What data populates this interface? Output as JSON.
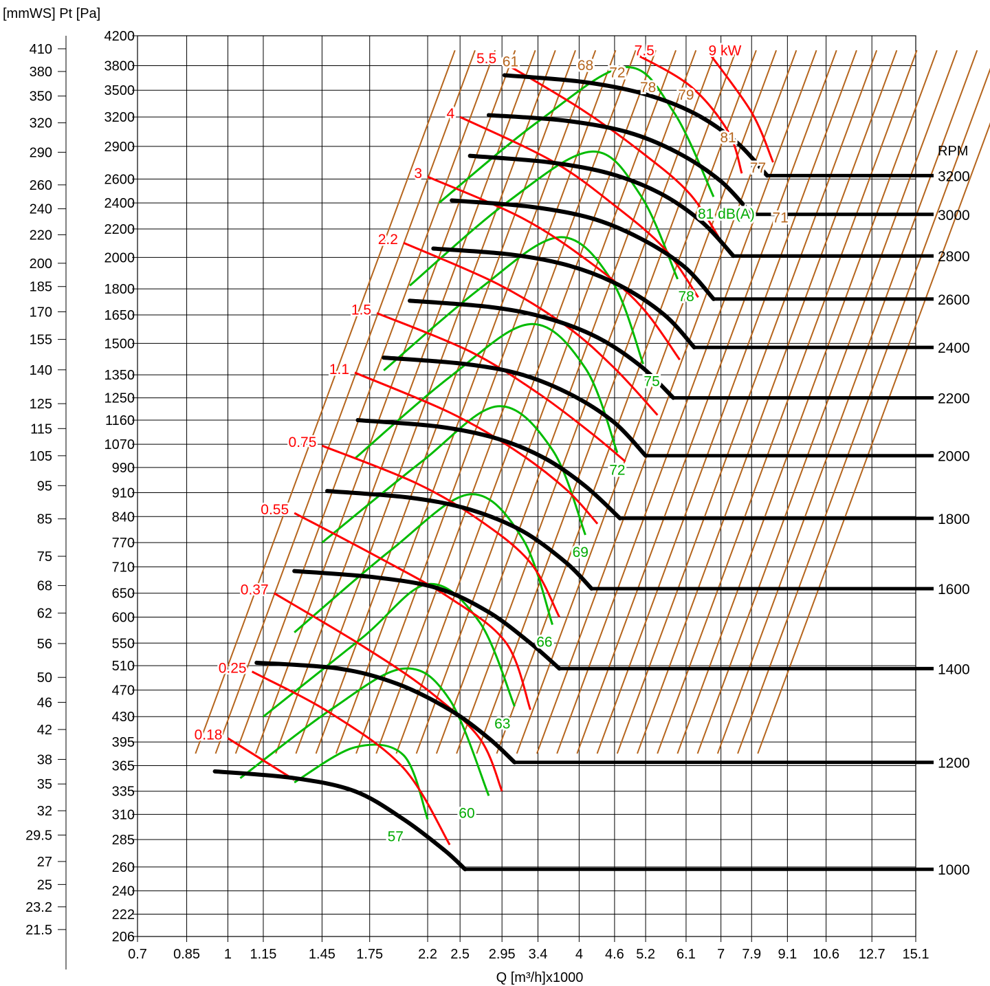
{
  "chart_data": {
    "type": "line",
    "title": "",
    "xlabel": "Q [m³/h]x1000",
    "ylabel": "[mmWS] Pt [Pa]",
    "right_axis_label": "RPM",
    "xlim": [
      0.7,
      15.1
    ],
    "ylim": [
      206,
      4200
    ],
    "x_scale": "log",
    "y_scale": "log",
    "grid": true,
    "x_ticks": [
      "0.7",
      "0.85",
      "1",
      "1.15",
      "1.45",
      "1.75",
      "2.2",
      "2.5",
      "2.95",
      "3.4",
      "4",
      "4.6",
      "5.2",
      "6.1",
      "7",
      "7.9",
      "9.1",
      "10.6",
      "12.7",
      "15.1"
    ],
    "y_ticks_pa": [
      "206",
      "222",
      "240",
      "260",
      "285",
      "310",
      "335",
      "365",
      "395",
      "430",
      "470",
      "510",
      "550",
      "600",
      "650",
      "710",
      "770",
      "840",
      "910",
      "990",
      "1070",
      "1160",
      "1250",
      "1350",
      "1500",
      "1650",
      "1800",
      "2000",
      "2200",
      "2400",
      "2600",
      "2900",
      "3200",
      "3500",
      "3800",
      "4200"
    ],
    "y_ticks_mmws": [
      "21.5",
      "23.2",
      "25",
      "27",
      "29.5",
      "32",
      "35",
      "38",
      "42",
      "46",
      "50",
      "56",
      "62",
      "68",
      "75",
      "85",
      "95",
      "105",
      "115",
      "125",
      "140",
      "155",
      "170",
      "185",
      "200",
      "220",
      "240",
      "260",
      "290",
      "320",
      "350",
      "380",
      "410"
    ],
    "fan_curves": [
      {
        "rpm": "1000",
        "points": [
          [
            0.95,
            358
          ],
          [
            1.3,
            350
          ],
          [
            1.65,
            335
          ],
          [
            2.0,
            305
          ],
          [
            2.35,
            275
          ],
          [
            2.55,
            258
          ]
        ],
        "flat_to": 15.1
      },
      {
        "rpm": "1200",
        "points": [
          [
            1.12,
            515
          ],
          [
            1.55,
            505
          ],
          [
            1.95,
            480
          ],
          [
            2.4,
            440
          ],
          [
            2.8,
            400
          ],
          [
            3.1,
            369
          ]
        ],
        "flat_to": 15.1
      },
      {
        "rpm": "1400",
        "points": [
          [
            1.3,
            700
          ],
          [
            1.8,
            685
          ],
          [
            2.3,
            660
          ],
          [
            2.8,
            610
          ],
          [
            3.3,
            550
          ],
          [
            3.7,
            505
          ]
        ],
        "flat_to": 15.1
      },
      {
        "rpm": "1600",
        "points": [
          [
            1.48,
            915
          ],
          [
            2.05,
            895
          ],
          [
            2.6,
            860
          ],
          [
            3.2,
            800
          ],
          [
            3.8,
            720
          ],
          [
            4.2,
            660
          ]
        ],
        "flat_to": 15.1
      },
      {
        "rpm": "1800",
        "points": [
          [
            1.67,
            1160
          ],
          [
            2.3,
            1135
          ],
          [
            2.9,
            1090
          ],
          [
            3.5,
            1020
          ],
          [
            4.1,
            930
          ],
          [
            4.7,
            835
          ]
        ],
        "flat_to": 15.1
      },
      {
        "rpm": "2000",
        "points": [
          [
            1.85,
            1430
          ],
          [
            2.55,
            1400
          ],
          [
            3.2,
            1350
          ],
          [
            3.9,
            1260
          ],
          [
            4.6,
            1150
          ],
          [
            5.2,
            1030
          ]
        ],
        "flat_to": 15.1
      },
      {
        "rpm": "2200",
        "points": [
          [
            2.05,
            1730
          ],
          [
            2.8,
            1695
          ],
          [
            3.5,
            1635
          ],
          [
            4.3,
            1530
          ],
          [
            5.1,
            1390
          ],
          [
            5.8,
            1250
          ]
        ],
        "flat_to": 15.1
      },
      {
        "rpm": "2400",
        "points": [
          [
            2.25,
            2060
          ],
          [
            3.05,
            2020
          ],
          [
            3.85,
            1945
          ],
          [
            4.7,
            1820
          ],
          [
            5.6,
            1650
          ],
          [
            6.3,
            1480
          ]
        ],
        "flat_to": 15.1
      },
      {
        "rpm": "2600",
        "points": [
          [
            2.42,
            2420
          ],
          [
            3.3,
            2370
          ],
          [
            4.2,
            2280
          ],
          [
            5.1,
            2130
          ],
          [
            6.05,
            1940
          ],
          [
            6.8,
            1740
          ]
        ],
        "flat_to": 15.1
      },
      {
        "rpm": "2800",
        "points": [
          [
            2.6,
            2810
          ],
          [
            3.55,
            2750
          ],
          [
            4.5,
            2650
          ],
          [
            5.5,
            2480
          ],
          [
            6.5,
            2250
          ],
          [
            7.35,
            2010
          ]
        ],
        "flat_to": 15.1
      },
      {
        "rpm": "3000",
        "points": [
          [
            2.8,
            3220
          ],
          [
            3.8,
            3160
          ],
          [
            4.85,
            3040
          ],
          [
            5.9,
            2840
          ],
          [
            7.0,
            2580
          ],
          [
            7.9,
            2310
          ]
        ],
        "flat_to": 15.1
      },
      {
        "rpm": "3200",
        "points": [
          [
            2.98,
            3680
          ],
          [
            4.05,
            3600
          ],
          [
            5.15,
            3460
          ],
          [
            6.3,
            3240
          ],
          [
            7.45,
            2940
          ],
          [
            8.4,
            2630
          ]
        ],
        "flat_to": 15.1
      }
    ],
    "power_lines": [
      {
        "label": "0.18",
        "points": [
          [
            1.0,
            400
          ],
          [
            1.3,
            348
          ]
        ]
      },
      {
        "label": "0.25",
        "points": [
          [
            1.1,
            500
          ],
          [
            1.5,
            435
          ],
          [
            2.0,
            362
          ],
          [
            2.4,
            280
          ]
        ]
      },
      {
        "label": "0.37",
        "points": [
          [
            1.2,
            650
          ],
          [
            1.7,
            545
          ],
          [
            2.2,
            470
          ],
          [
            2.7,
            400
          ],
          [
            2.95,
            335
          ]
        ]
      },
      {
        "label": "0.55",
        "points": [
          [
            1.3,
            850
          ],
          [
            1.8,
            735
          ],
          [
            2.4,
            640
          ],
          [
            3.0,
            550
          ],
          [
            3.3,
            440
          ]
        ]
      },
      {
        "label": "0.75",
        "points": [
          [
            1.45,
            1065
          ],
          [
            2.1,
            940
          ],
          [
            2.7,
            830
          ],
          [
            3.3,
            720
          ],
          [
            3.7,
            600
          ]
        ]
      },
      {
        "label": "1.1",
        "points": [
          [
            1.65,
            1360
          ],
          [
            2.4,
            1190
          ],
          [
            3.1,
            1050
          ],
          [
            3.8,
            920
          ],
          [
            4.3,
            820
          ]
        ]
      },
      {
        "label": "1.5",
        "points": [
          [
            1.8,
            1660
          ],
          [
            2.6,
            1460
          ],
          [
            3.4,
            1270
          ],
          [
            4.2,
            1110
          ],
          [
            4.8,
            1010
          ]
        ]
      },
      {
        "label": "2.2",
        "points": [
          [
            2.0,
            2100
          ],
          [
            2.9,
            1830
          ],
          [
            3.8,
            1590
          ],
          [
            4.6,
            1380
          ],
          [
            5.45,
            1180
          ]
        ]
      },
      {
        "label": "3",
        "points": [
          [
            2.2,
            2620
          ],
          [
            3.2,
            2280
          ],
          [
            4.2,
            1960
          ],
          [
            5.1,
            1700
          ],
          [
            5.95,
            1420
          ]
        ]
      },
      {
        "label": "4",
        "points": [
          [
            2.5,
            3200
          ],
          [
            3.6,
            2760
          ],
          [
            4.6,
            2380
          ],
          [
            5.6,
            2060
          ],
          [
            6.4,
            1750
          ]
        ]
      },
      {
        "label": "5.5",
        "points": [
          [
            2.95,
            3850
          ],
          [
            4.0,
            3300
          ],
          [
            5.1,
            2850
          ],
          [
            6.2,
            2470
          ],
          [
            7.1,
            2070
          ]
        ]
      },
      {
        "label": "7.5",
        "points": [
          [
            5.0,
            3950
          ],
          [
            6.2,
            3550
          ],
          [
            7.2,
            3050
          ],
          [
            7.6,
            2650
          ]
        ]
      },
      {
        "label": "9 kW",
        "points": [
          [
            6.7,
            3950
          ],
          [
            7.9,
            3250
          ],
          [
            8.6,
            2750
          ]
        ]
      }
    ],
    "noise_curves": [
      {
        "label": "57",
        "points": [
          [
            1.3,
            345
          ],
          [
            1.65,
            388
          ],
          [
            2.0,
            378
          ],
          [
            2.2,
            305
          ]
        ]
      },
      {
        "label": "60",
        "points": [
          [
            1.05,
            350
          ],
          [
            1.5,
            440
          ],
          [
            2.0,
            505
          ],
          [
            2.4,
            455
          ],
          [
            2.8,
            330
          ]
        ]
      },
      {
        "label": "63",
        "points": [
          [
            1.15,
            430
          ],
          [
            1.7,
            560
          ],
          [
            2.2,
            670
          ],
          [
            2.7,
            590
          ],
          [
            3.1,
            445
          ]
        ]
      },
      {
        "label": "66",
        "points": [
          [
            1.3,
            570
          ],
          [
            1.9,
            750
          ],
          [
            2.6,
            905
          ],
          [
            3.2,
            780
          ],
          [
            3.6,
            585
          ]
        ]
      },
      {
        "label": "69",
        "points": [
          [
            1.45,
            770
          ],
          [
            2.15,
            1010
          ],
          [
            2.9,
            1215
          ],
          [
            3.6,
            1050
          ],
          [
            4.1,
            790
          ]
        ]
      },
      {
        "label": "72",
        "points": [
          [
            1.65,
            1020
          ],
          [
            2.4,
            1340
          ],
          [
            3.3,
            1600
          ],
          [
            4.1,
            1380
          ],
          [
            4.65,
            1040
          ]
        ]
      },
      {
        "label": "75",
        "points": [
          [
            1.85,
            1370
          ],
          [
            2.7,
            1800
          ],
          [
            3.7,
            2140
          ],
          [
            4.55,
            1850
          ],
          [
            5.15,
            1400
          ]
        ]
      },
      {
        "label": "78",
        "points": [
          [
            2.05,
            1820
          ],
          [
            3.0,
            2400
          ],
          [
            4.2,
            2850
          ],
          [
            5.1,
            2460
          ],
          [
            5.9,
            1860
          ]
        ]
      },
      {
        "label": "81 dB(A)",
        "points": [
          [
            2.3,
            2400
          ],
          [
            3.4,
            3150
          ],
          [
            4.8,
            3780
          ],
          [
            5.8,
            3260
          ],
          [
            6.8,
            2450
          ]
        ]
      }
    ],
    "noise_label_x": {
      "57": 2.0,
      "60": 2.65,
      "63": 3.05,
      "66": 3.6,
      "69": 4.15,
      "72": 4.8,
      "75": 5.5,
      "78": 6.3,
      "81 dB(A)": 8.0
    },
    "system_line_labels": [
      "61",
      "68",
      "72",
      "78",
      "79",
      "81",
      "77",
      "71"
    ],
    "colors": {
      "fan_curve": "#000000",
      "power_line": "#ff0000",
      "noise_curve": "#00bb00",
      "system_line": "#b5651d",
      "grid": "#000000",
      "system_label": "#b5651d",
      "power_label": "#ff0000",
      "noise_label": "#00aa00"
    }
  }
}
